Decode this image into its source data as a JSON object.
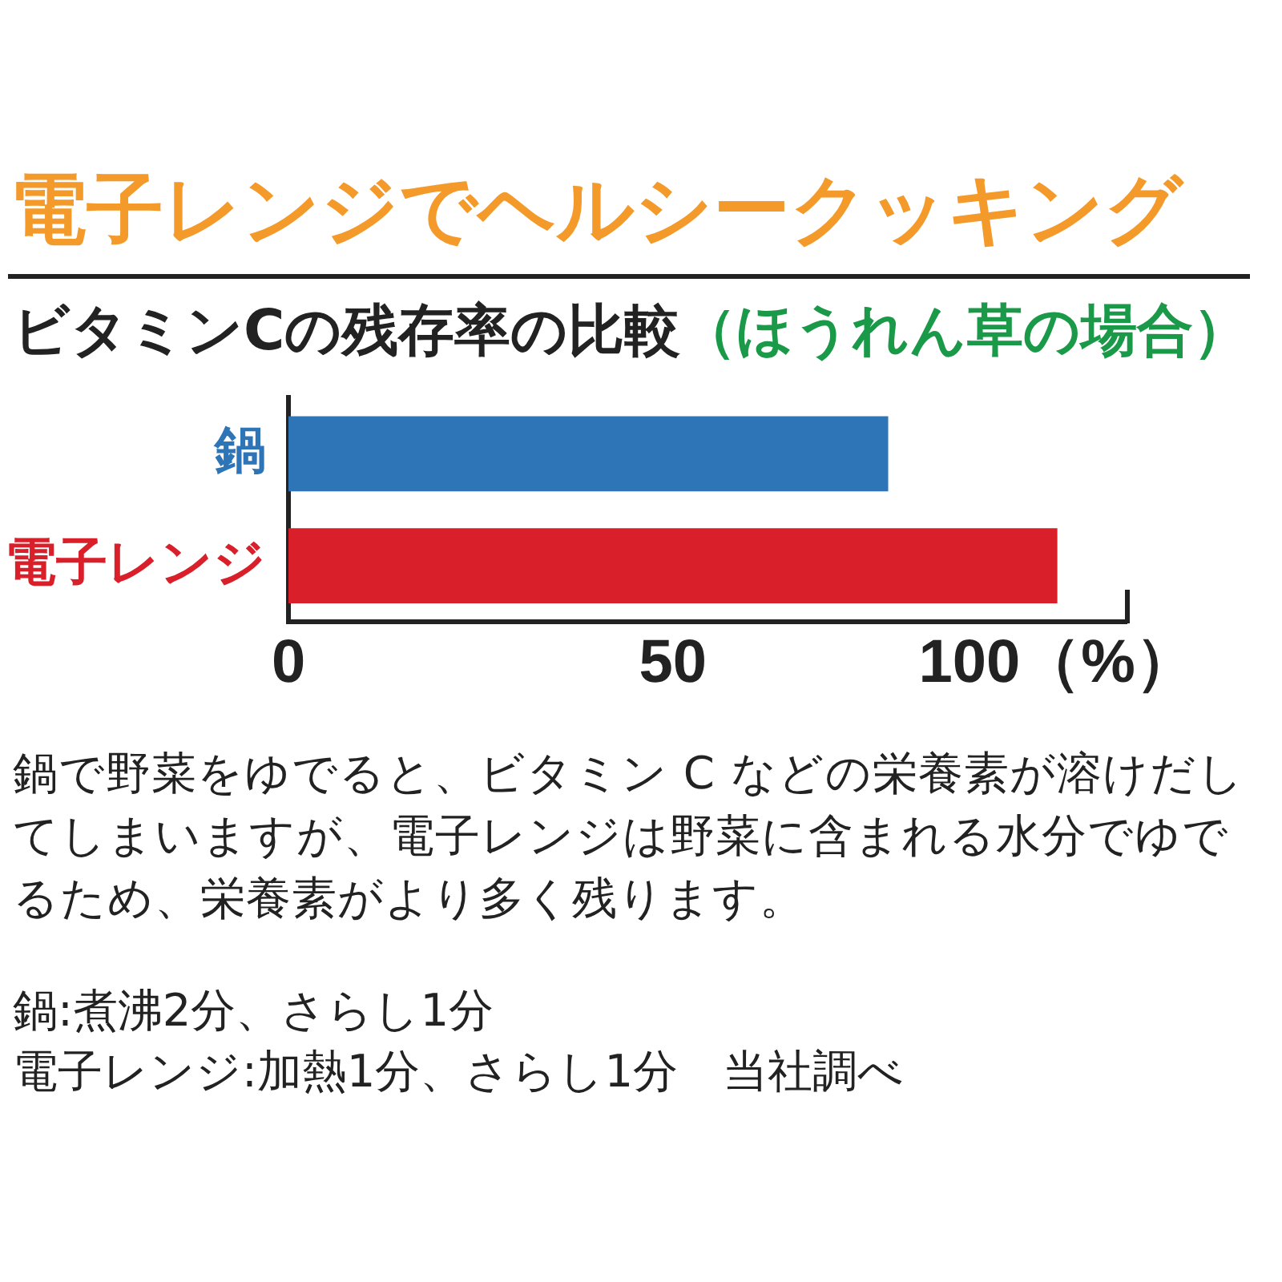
{
  "chart_data": {
    "type": "bar",
    "orientation": "horizontal",
    "title": "電子レンジでヘルシークッキング",
    "subtitle": "ビタミンCの残存率の比較（ほうれん草の場合）",
    "categories": [
      "鍋",
      "電子レンジ"
    ],
    "values": [
      78,
      100
    ],
    "colors": [
      "#2e75b8",
      "#d9202a"
    ],
    "xlim": [
      0,
      109
    ],
    "xticks": [
      0,
      50,
      {
        "value": 100,
        "label": "100（%）"
      }
    ],
    "annotations": [
      "鍋で野菜をゆでると、ビタミン C などの栄養素が溶けだしてしまいますが、電子レンジは野菜に含まれる水分でゆでるため、栄養素がより多く残ります。",
      "鍋:煮沸2分、さらし1分",
      "電子レンジ:加熱1分、さらし1分　当社調べ"
    ]
  }
}
